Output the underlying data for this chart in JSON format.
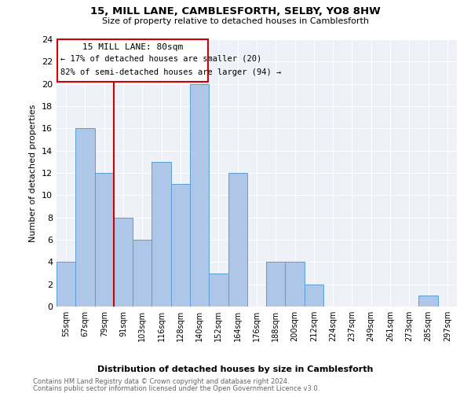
{
  "title": "15, MILL LANE, CAMBLESFORTH, SELBY, YO8 8HW",
  "subtitle": "Size of property relative to detached houses in Camblesforth",
  "xlabel": "Distribution of detached houses by size in Camblesforth",
  "ylabel": "Number of detached properties",
  "bins": [
    "55sqm",
    "67sqm",
    "79sqm",
    "91sqm",
    "103sqm",
    "116sqm",
    "128sqm",
    "140sqm",
    "152sqm",
    "164sqm",
    "176sqm",
    "188sqm",
    "200sqm",
    "212sqm",
    "224sqm",
    "237sqm",
    "249sqm",
    "261sqm",
    "273sqm",
    "285sqm",
    "297sqm"
  ],
  "values": [
    4,
    16,
    12,
    8,
    6,
    13,
    11,
    20,
    3,
    12,
    0,
    4,
    4,
    2,
    0,
    0,
    0,
    0,
    0,
    1,
    0
  ],
  "bar_color": "#aec6e8",
  "bar_edge_color": "#5a9fd4",
  "property_line_x": 2.5,
  "property_line_label": "15 MILL LANE: 80sqm",
  "annotation_line1": "← 17% of detached houses are smaller (20)",
  "annotation_line2": "82% of semi-detached houses are larger (94) →",
  "box_color": "#cc0000",
  "ylim": [
    0,
    24
  ],
  "yticks": [
    0,
    2,
    4,
    6,
    8,
    10,
    12,
    14,
    16,
    18,
    20,
    22,
    24
  ],
  "footnote1": "Contains HM Land Registry data © Crown copyright and database right 2024.",
  "footnote2": "Contains public sector information licensed under the Open Government Licence v3.0.",
  "bg_color": "#eef2f8"
}
